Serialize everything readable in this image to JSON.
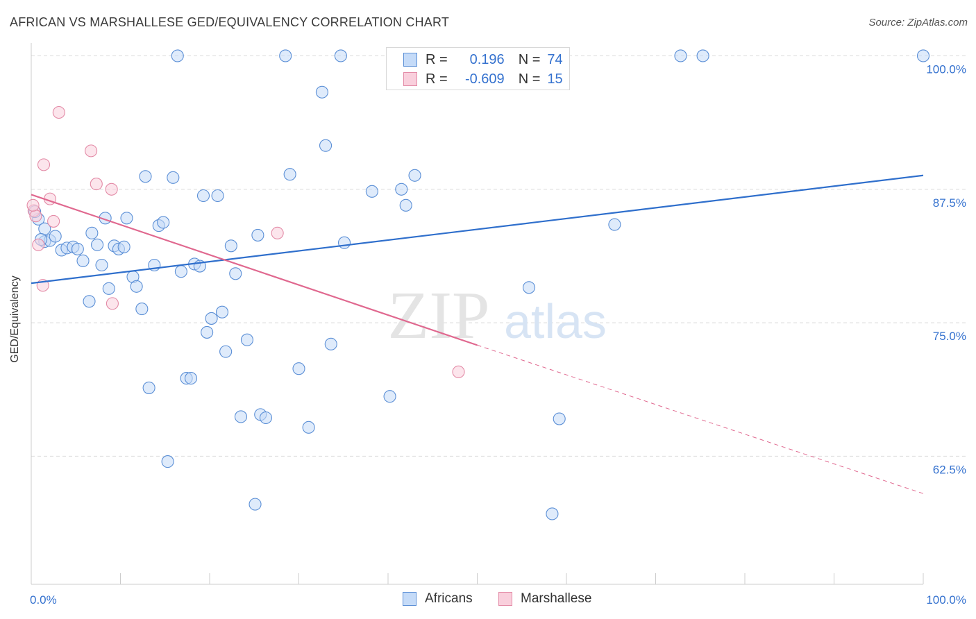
{
  "title": "AFRICAN VS MARSHALLESE GED/EQUIVALENCY CORRELATION CHART",
  "source": "Source: ZipAtlas.com",
  "watermark": {
    "zip": "ZIP",
    "atlas": "atlas"
  },
  "stats": {
    "africans": {
      "r_label": "R =",
      "r": "0.196",
      "n_label": "N =",
      "n": "74"
    },
    "marshallese": {
      "r_label": "R =",
      "r": "-0.609",
      "n_label": "N =",
      "n": "15"
    }
  },
  "colors": {
    "africans_fill": "#c5dbf8",
    "africans_stroke": "#5b8fd6",
    "africans_line": "#2f6fcc",
    "marshallese_fill": "#f9cfdc",
    "marshallese_stroke": "#e38aa6",
    "marshallese_line": "#e0688f",
    "tick_label": "#3572cf",
    "grid": "#d9d9d9"
  },
  "chart_data": {
    "type": "scatter",
    "title": "AFRICAN VS MARSHALLESE GED/EQUIVALENCY CORRELATION CHART",
    "xlabel": "",
    "ylabel": "GED/Equivalency",
    "xlim": [
      0,
      100
    ],
    "ylim": [
      50.5,
      101.2
    ],
    "x_tick_labels": [
      "0.0%",
      "100.0%"
    ],
    "y_ticks": [
      62.5,
      75.0,
      87.5,
      100.0
    ],
    "y_tick_labels": [
      "62.5%",
      "75.0%",
      "87.5%",
      "100.0%"
    ],
    "grid": "horizontal dashed",
    "legend_position": "bottom-center",
    "series": [
      {
        "name": "Africans",
        "points": [
          [
            0.8,
            84.7
          ],
          [
            1.5,
            83.8
          ],
          [
            1.5,
            82.6
          ],
          [
            2.1,
            82.7
          ],
          [
            2.7,
            83.1
          ],
          [
            3.4,
            81.8
          ],
          [
            4.0,
            82.0
          ],
          [
            4.7,
            82.1
          ],
          [
            5.2,
            81.9
          ],
          [
            5.8,
            80.8
          ],
          [
            6.5,
            77.0
          ],
          [
            6.8,
            83.4
          ],
          [
            7.4,
            82.3
          ],
          [
            7.9,
            80.4
          ],
          [
            8.3,
            84.8
          ],
          [
            8.7,
            78.2
          ],
          [
            9.3,
            82.2
          ],
          [
            9.8,
            81.9
          ],
          [
            10.4,
            82.1
          ],
          [
            10.7,
            84.8
          ],
          [
            11.4,
            79.3
          ],
          [
            11.8,
            78.4
          ],
          [
            12.4,
            76.3
          ],
          [
            12.8,
            88.7
          ],
          [
            13.2,
            68.9
          ],
          [
            13.8,
            80.4
          ],
          [
            14.3,
            84.1
          ],
          [
            14.8,
            84.4
          ],
          [
            15.3,
            62.0
          ],
          [
            15.9,
            88.6
          ],
          [
            16.4,
            100.0
          ],
          [
            16.8,
            79.8
          ],
          [
            17.4,
            69.8
          ],
          [
            17.9,
            69.8
          ],
          [
            18.3,
            80.5
          ],
          [
            18.9,
            80.3
          ],
          [
            19.3,
            86.9
          ],
          [
            19.7,
            74.1
          ],
          [
            20.2,
            75.4
          ],
          [
            20.9,
            86.9
          ],
          [
            21.4,
            76.0
          ],
          [
            21.8,
            72.3
          ],
          [
            22.4,
            82.2
          ],
          [
            22.9,
            79.6
          ],
          [
            23.5,
            66.2
          ],
          [
            24.2,
            73.4
          ],
          [
            25.1,
            58.0
          ],
          [
            25.4,
            83.2
          ],
          [
            25.7,
            66.4
          ],
          [
            26.3,
            66.1
          ],
          [
            28.5,
            100.0
          ],
          [
            29.0,
            88.9
          ],
          [
            30.0,
            70.7
          ],
          [
            31.1,
            65.2
          ],
          [
            32.6,
            96.6
          ],
          [
            33.0,
            91.6
          ],
          [
            33.6,
            73.0
          ],
          [
            34.7,
            100.0
          ],
          [
            35.1,
            82.5
          ],
          [
            38.2,
            87.3
          ],
          [
            40.2,
            68.1
          ],
          [
            41.5,
            87.5
          ],
          [
            42.0,
            86.0
          ],
          [
            43.0,
            88.8
          ],
          [
            52.1,
            100.0
          ],
          [
            55.8,
            78.3
          ],
          [
            58.4,
            57.1
          ],
          [
            59.2,
            66.0
          ],
          [
            65.4,
            84.2
          ],
          [
            72.8,
            100.0
          ],
          [
            75.3,
            100.0
          ],
          [
            100.0,
            100.0
          ],
          [
            0.4,
            85.4
          ],
          [
            1.1,
            82.8
          ]
        ],
        "trend": {
          "x": [
            0,
            100
          ],
          "y": [
            78.7,
            88.8
          ]
        }
      },
      {
        "name": "Marshallese",
        "points": [
          [
            0.3,
            85.5
          ],
          [
            0.5,
            85.0
          ],
          [
            0.8,
            82.3
          ],
          [
            1.3,
            78.5
          ],
          [
            1.4,
            89.8
          ],
          [
            2.1,
            86.6
          ],
          [
            2.5,
            84.5
          ],
          [
            3.1,
            94.7
          ],
          [
            6.7,
            91.1
          ],
          [
            7.3,
            88.0
          ],
          [
            9.0,
            87.5
          ],
          [
            9.1,
            76.8
          ],
          [
            27.6,
            83.4
          ],
          [
            47.9,
            70.4
          ],
          [
            0.2,
            86.0
          ]
        ],
        "trend": {
          "x": [
            0,
            50
          ],
          "y": [
            87.0,
            72.9
          ]
        },
        "trend_extrapolated": {
          "x": [
            50,
            100
          ],
          "y": [
            72.9,
            59.0
          ]
        }
      }
    ]
  },
  "legend": {
    "africans": "Africans",
    "marshallese": "Marshallese"
  }
}
